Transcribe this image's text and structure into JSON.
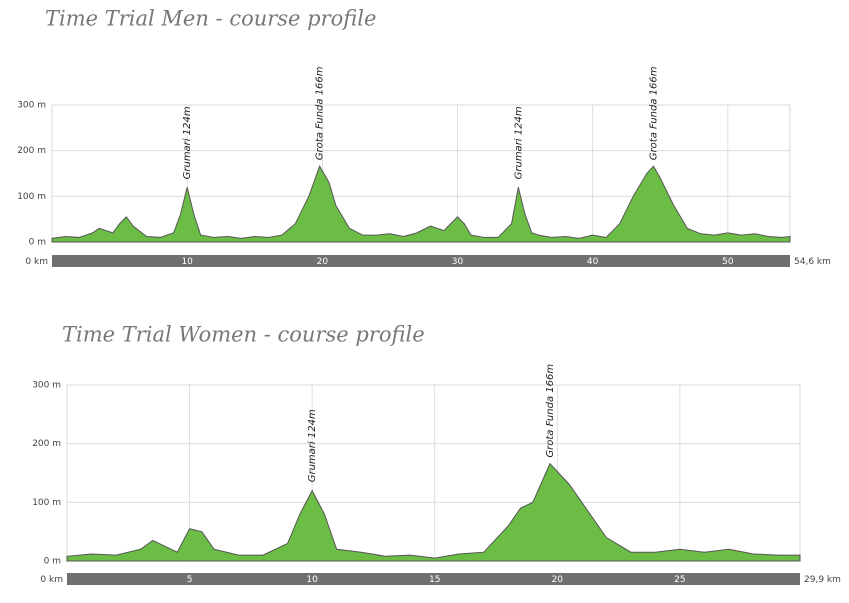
{
  "chart_data": [
    {
      "type": "area",
      "title": "Time Trial Men - course profile",
      "color": "#6cbd45",
      "line_color": "#555555",
      "grid": true,
      "x": [
        0,
        1,
        2,
        3,
        3.5,
        4,
        4.5,
        5,
        5.5,
        6,
        7,
        8,
        9,
        9.5,
        10,
        10.5,
        11,
        12,
        13,
        14,
        15,
        16,
        17,
        18,
        19,
        19.8,
        20.5,
        21,
        22,
        23,
        24,
        25,
        26,
        27,
        28,
        29,
        30,
        30.5,
        31,
        32,
        33,
        34,
        34.5,
        35,
        35.5,
        36,
        37,
        38,
        39,
        40,
        41,
        42,
        43,
        44,
        44.5,
        45,
        46,
        47,
        48,
        49,
        50,
        51,
        52,
        53,
        54,
        54.6
      ],
      "values": [
        8,
        12,
        10,
        20,
        30,
        25,
        20,
        40,
        55,
        35,
        12,
        10,
        20,
        60,
        120,
        60,
        15,
        10,
        12,
        8,
        12,
        10,
        15,
        40,
        100,
        166,
        130,
        80,
        30,
        15,
        15,
        18,
        12,
        20,
        35,
        25,
        55,
        40,
        15,
        10,
        10,
        40,
        120,
        60,
        20,
        15,
        10,
        12,
        8,
        15,
        10,
        40,
        100,
        150,
        166,
        140,
        80,
        30,
        18,
        15,
        20,
        15,
        18,
        12,
        10,
        12
      ],
      "xlim": [
        0,
        54.6
      ],
      "xticks": [
        {
          "value": 0,
          "label": "0 km"
        },
        10,
        20,
        30,
        40,
        50,
        {
          "value": 54.6,
          "label": "54,6 km"
        }
      ],
      "ylim": [
        0,
        300
      ],
      "yticks": [
        {
          "value": 0,
          "label": "0 m"
        },
        {
          "value": 100,
          "label": "100 m"
        },
        {
          "value": 200,
          "label": "200 m"
        },
        {
          "value": 300,
          "label": "300 m"
        }
      ],
      "annotations": [
        {
          "label": "Grumari 124m",
          "x": 10,
          "y": 124
        },
        {
          "label": "Grota Funda 166m",
          "x": 19.8,
          "y": 166
        },
        {
          "label": "Grumari 124m",
          "x": 34.5,
          "y": 124
        },
        {
          "label": "Grota Funda 166m",
          "x": 44.5,
          "y": 166
        }
      ]
    },
    {
      "type": "area",
      "title": "Time Trial Women - course profile",
      "color": "#6cbd45",
      "line_color": "#555555",
      "grid": true,
      "x": [
        0,
        1,
        2,
        3,
        3.5,
        4,
        4.5,
        5,
        5.5,
        6,
        7,
        8,
        9,
        9.5,
        10,
        10.5,
        11,
        12,
        13,
        14,
        15,
        16,
        17,
        18,
        18.5,
        19,
        19.7,
        20.5,
        21,
        22,
        23,
        24,
        25,
        26,
        27,
        28,
        29,
        29.9
      ],
      "values": [
        8,
        12,
        10,
        20,
        35,
        25,
        15,
        55,
        50,
        20,
        10,
        10,
        30,
        80,
        120,
        80,
        20,
        15,
        8,
        10,
        5,
        12,
        15,
        60,
        90,
        100,
        166,
        130,
        100,
        40,
        15,
        15,
        20,
        15,
        20,
        12,
        10,
        10
      ],
      "xlim": [
        0,
        29.9
      ],
      "xticks": [
        {
          "value": 0,
          "label": "0 km"
        },
        5,
        10,
        15,
        20,
        25,
        {
          "value": 29.9,
          "label": "29,9 km"
        }
      ],
      "ylim": [
        0,
        300
      ],
      "yticks": [
        {
          "value": 0,
          "label": "0 m"
        },
        {
          "value": 100,
          "label": "100 m"
        },
        {
          "value": 200,
          "label": "200 m"
        },
        {
          "value": 300,
          "label": "300 m"
        }
      ],
      "annotations": [
        {
          "label": "Grumari 124m",
          "x": 10,
          "y": 124
        },
        {
          "label": "Grota Funda 166m",
          "x": 19.7,
          "y": 166
        }
      ]
    }
  ]
}
